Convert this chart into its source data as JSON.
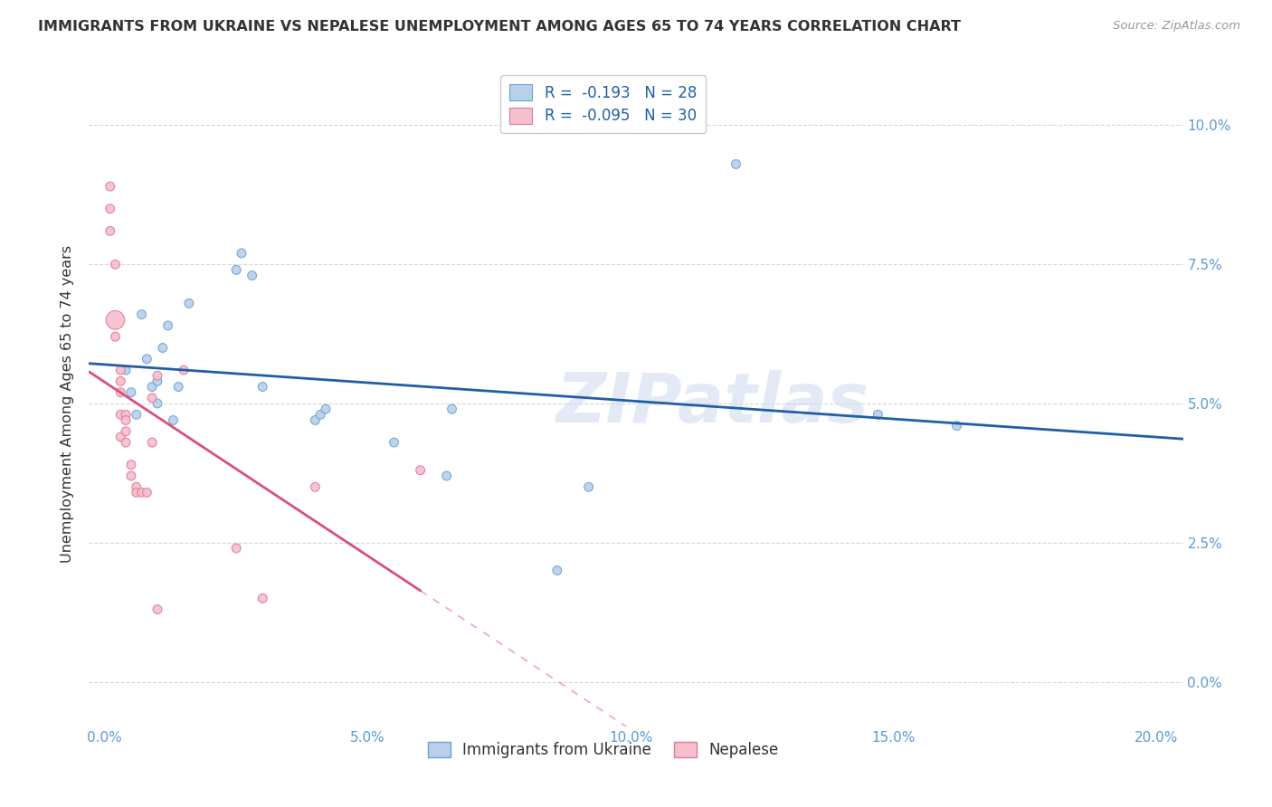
{
  "title": "IMMIGRANTS FROM UKRAINE VS NEPALESE UNEMPLOYMENT AMONG AGES 65 TO 74 YEARS CORRELATION CHART",
  "source": "Source: ZipAtlas.com",
  "xlabel_ticks": [
    "0.0%",
    "5.0%",
    "10.0%",
    "15.0%",
    "20.0%"
  ],
  "xlabel_vals": [
    0.0,
    0.05,
    0.1,
    0.15,
    0.2
  ],
  "ylabel_ticks": [
    "0.0%",
    "2.5%",
    "5.0%",
    "7.5%",
    "10.0%"
  ],
  "ylabel_vals": [
    0.0,
    0.025,
    0.05,
    0.075,
    0.1
  ],
  "ylabel_label": "Unemployment Among Ages 65 to 74 years",
  "legend_labels": [
    "Immigrants from Ukraine",
    "Nepalese"
  ],
  "legend_R_ukraine": "-0.193",
  "legend_N_ukraine": "28",
  "legend_R_nepalese": "-0.095",
  "legend_N_nepalese": "30",
  "ukraine_color": "#b8d0ea",
  "ukraine_edge_color": "#6aa3d2",
  "nepalese_color": "#f5bfcc",
  "nepalese_edge_color": "#e07898",
  "trend_ukraine_color": "#1f5fa6",
  "trend_nepalese_color": "#d94f7a",
  "background_color": "#ffffff",
  "watermark": "ZIPatlas",
  "ukraine_x": [
    0.004,
    0.005,
    0.006,
    0.007,
    0.008,
    0.009,
    0.01,
    0.01,
    0.011,
    0.012,
    0.013,
    0.014,
    0.016,
    0.025,
    0.026,
    0.028,
    0.03,
    0.04,
    0.041,
    0.042,
    0.055,
    0.065,
    0.066,
    0.086,
    0.092,
    0.12,
    0.147,
    0.162
  ],
  "ukraine_y": [
    0.056,
    0.052,
    0.048,
    0.066,
    0.058,
    0.053,
    0.054,
    0.05,
    0.06,
    0.064,
    0.047,
    0.053,
    0.068,
    0.074,
    0.077,
    0.073,
    0.053,
    0.047,
    0.048,
    0.049,
    0.043,
    0.037,
    0.049,
    0.02,
    0.035,
    0.093,
    0.048,
    0.046
  ],
  "ukraine_sizes": [
    50,
    50,
    50,
    50,
    50,
    50,
    50,
    50,
    50,
    50,
    50,
    50,
    50,
    50,
    50,
    50,
    50,
    50,
    50,
    50,
    50,
    50,
    50,
    50,
    50,
    50,
    50,
    50
  ],
  "nepalese_x": [
    0.001,
    0.001,
    0.001,
    0.002,
    0.002,
    0.002,
    0.003,
    0.003,
    0.003,
    0.003,
    0.003,
    0.004,
    0.004,
    0.004,
    0.004,
    0.005,
    0.005,
    0.006,
    0.006,
    0.007,
    0.008,
    0.009,
    0.009,
    0.01,
    0.01,
    0.015,
    0.025,
    0.03,
    0.04,
    0.06
  ],
  "nepalese_y": [
    0.089,
    0.085,
    0.081,
    0.075,
    0.065,
    0.062,
    0.056,
    0.054,
    0.052,
    0.048,
    0.044,
    0.048,
    0.047,
    0.045,
    0.043,
    0.039,
    0.037,
    0.035,
    0.034,
    0.034,
    0.034,
    0.051,
    0.043,
    0.013,
    0.055,
    0.056,
    0.024,
    0.015,
    0.035,
    0.038
  ],
  "nepalese_sizes": [
    50,
    50,
    50,
    50,
    220,
    50,
    50,
    50,
    50,
    50,
    50,
    50,
    50,
    50,
    50,
    50,
    50,
    50,
    50,
    50,
    50,
    50,
    50,
    50,
    50,
    50,
    50,
    50,
    50,
    50
  ],
  "xlim": [
    -0.003,
    0.205
  ],
  "ylim": [
    -0.008,
    0.108
  ],
  "nepalese_trend_solid_end": 0.06,
  "nepalese_trend_dashed_end": 0.205
}
